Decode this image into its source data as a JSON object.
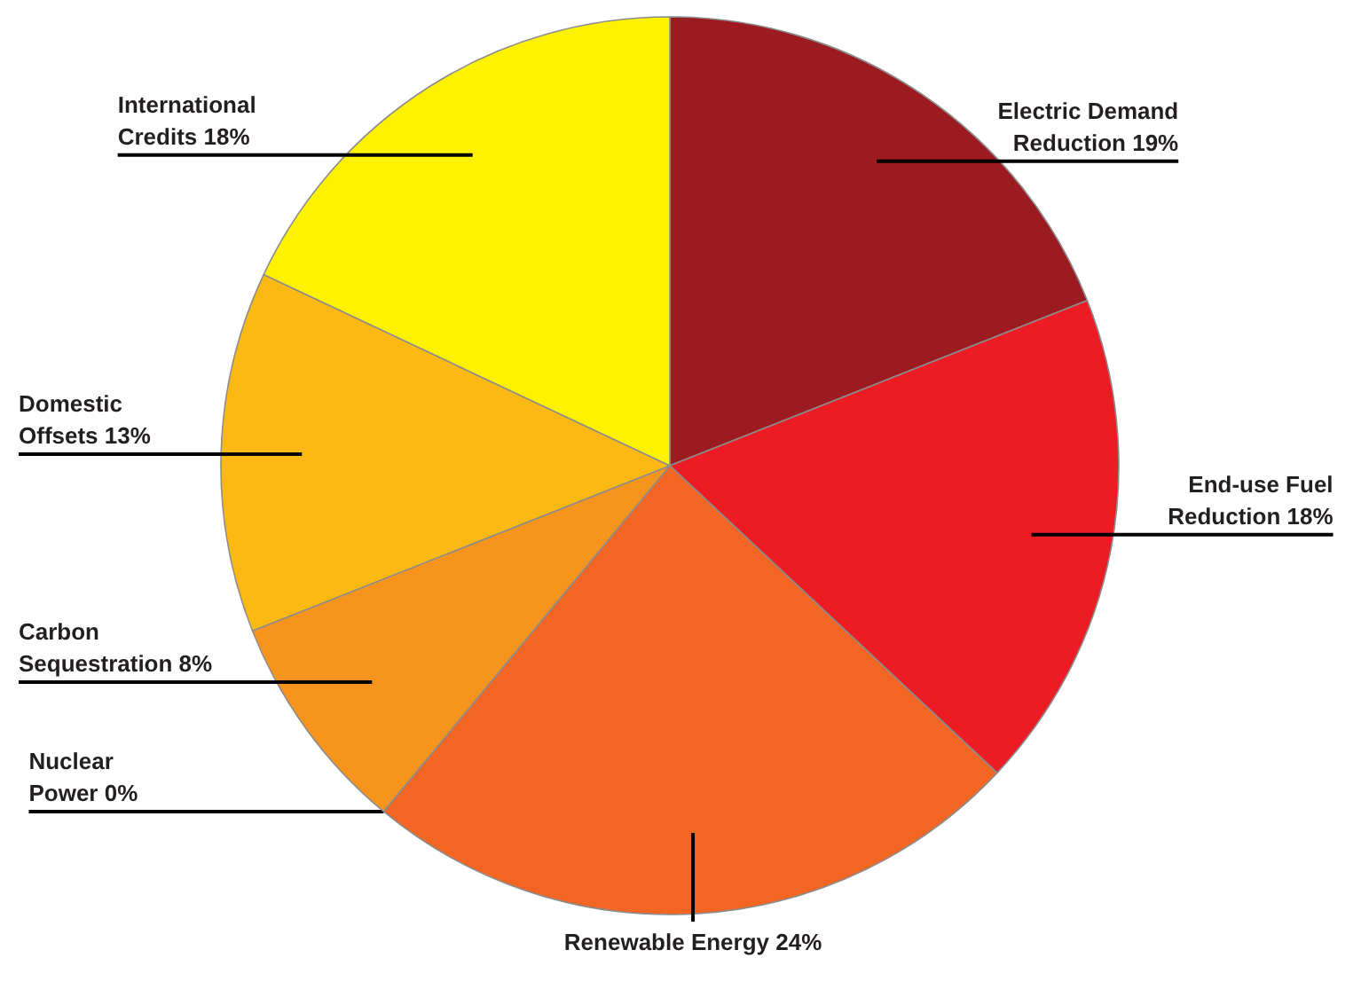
{
  "chart_data": {
    "type": "pie",
    "categories": [
      "Electric Demand\nReduction",
      "End-use Fuel\nReduction",
      "Renewable Energy",
      "Nuclear\nPower",
      "Carbon\nSequestration",
      "Domestic\nOffsets",
      "International\nCredits"
    ],
    "values": [
      19,
      18,
      24,
      0,
      8,
      13,
      18
    ],
    "value_labels": [
      "19%",
      "18%",
      "24%",
      "0%",
      "8%",
      "13%",
      "18%"
    ],
    "colors": [
      "#9b1b20",
      "#ed1c24",
      "#f26522",
      "#f7941d",
      "#f7941d",
      "#fdb913",
      "#fff200"
    ]
  }
}
